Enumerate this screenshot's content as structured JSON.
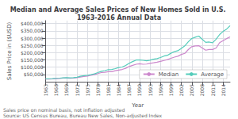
{
  "chart_data": {
    "type": "line",
    "title": "Median and Average Sales Prices of New Homes Sold in U.S. 1963-2016 Annual Data",
    "xlabel": "Year",
    "ylabel": "Sales Price in ($USD)",
    "annotations": [
      "Sales price on nominal basis, not inflation adjusted",
      "Source: US Census Bureau, Bureau New Sales, Non-adjusted Index"
    ],
    "x": [
      1963,
      1964,
      1965,
      1966,
      1967,
      1968,
      1969,
      1970,
      1971,
      1972,
      1973,
      1974,
      1975,
      1976,
      1977,
      1978,
      1979,
      1980,
      1981,
      1982,
      1983,
      1984,
      1985,
      1986,
      1987,
      1988,
      1989,
      1990,
      1991,
      1992,
      1993,
      1994,
      1995,
      1996,
      1997,
      1998,
      1999,
      2000,
      2001,
      2002,
      2003,
      2004,
      2005,
      2006,
      2007,
      2008,
      2009,
      2010,
      2011,
      2012,
      2013,
      2014,
      2015,
      2016
    ],
    "series": [
      {
        "name": "Median",
        "color": "#cc88cc",
        "values": [
          18000,
          18900,
          20000,
          21400,
          22700,
          24700,
          25600,
          23400,
          25200,
          27600,
          32500,
          35900,
          39300,
          44200,
          48800,
          55700,
          62900,
          64600,
          68900,
          69300,
          75300,
          79900,
          84300,
          92000,
          104500,
          112500,
          120000,
          122900,
          120000,
          121500,
          126500,
          130000,
          133900,
          140000,
          146000,
          152000,
          161000,
          169000,
          175200,
          187600,
          195000,
          221000,
          240900,
          246500,
          247900,
          232100,
          216700,
          221800,
          221800,
          232000,
          268900,
          282700,
          296400,
          307800
        ]
      },
      {
        "name": "Average",
        "color": "#55ccbb",
        "values": [
          19300,
          20500,
          21500,
          23300,
          24600,
          26600,
          27900,
          26600,
          28300,
          30500,
          37100,
          41800,
          44600,
          48000,
          54200,
          62500,
          71800,
          76400,
          83000,
          83900,
          89800,
          97600,
          100800,
          111900,
          127200,
          138300,
          148800,
          149800,
          147200,
          144100,
          147700,
          154500,
          158700,
          166400,
          176200,
          181900,
          195600,
          207000,
          213200,
          228700,
          246300,
          274500,
          297000,
          305900,
          313600,
          291858,
          270900,
          272900,
          267900,
          292200,
          324500,
          345800,
          361800,
          385100
        ]
      }
    ],
    "xlim": [
      1963,
      2016
    ],
    "xticks": [
      1963,
      1966,
      1969,
      1972,
      1975,
      1978,
      1981,
      1984,
      1987,
      1990,
      1993,
      1996,
      1999,
      2002,
      2005,
      2008,
      2011,
      2014
    ],
    "ylim": [
      0,
      420000
    ],
    "yticks": [
      {
        "value": 50000,
        "label": "$50,000"
      },
      {
        "value": 100000,
        "label": "$100,000"
      },
      {
        "value": 150000,
        "label": "$150,000"
      },
      {
        "value": 200000,
        "label": "$200,000"
      },
      {
        "value": 250000,
        "label": "$250,000"
      },
      {
        "value": 300000,
        "label": "$300,000"
      },
      {
        "value": 350000,
        "label": "$350,000"
      },
      {
        "value": 400000,
        "label": "$400,000"
      }
    ],
    "grid": true,
    "legend": "lower right"
  }
}
